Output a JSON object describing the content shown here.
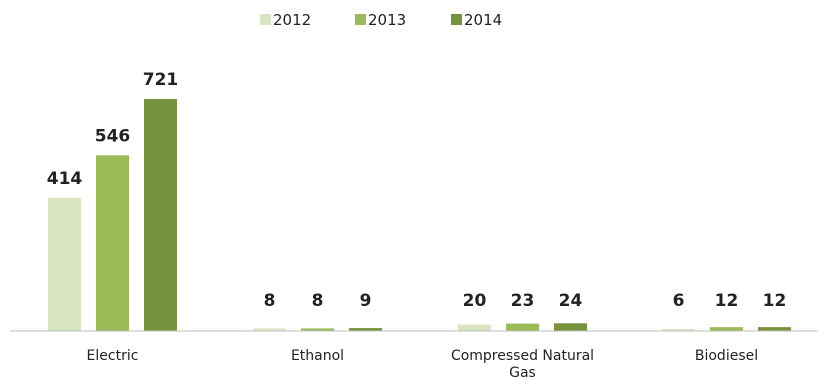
{
  "chart_data": {
    "type": "bar",
    "categories": [
      "Electric",
      "Ethanol",
      "Compressed Natural Gas",
      "Biodiesel"
    ],
    "series": [
      {
        "name": "2012",
        "values": [
          414,
          8,
          20,
          6
        ],
        "color": "#d9e5c0"
      },
      {
        "name": "2013",
        "values": [
          546,
          8,
          23,
          12
        ],
        "color": "#9bbb59"
      },
      {
        "name": "2014",
        "values": [
          721,
          9,
          24,
          12
        ],
        "color": "#76923c"
      }
    ],
    "ylim": [
      0,
      721
    ],
    "grid": false,
    "legend_position": "top-center",
    "data_labels": true
  }
}
